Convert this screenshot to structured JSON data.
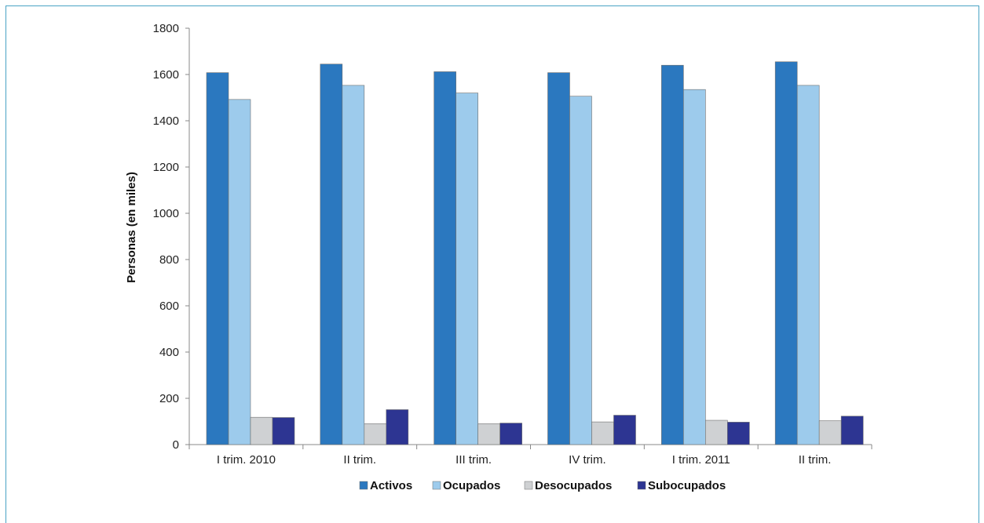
{
  "chart_data": {
    "type": "bar",
    "ylabel": "Personas (en miles)",
    "xlabel": "",
    "ylim": [
      0,
      1800
    ],
    "yticks": [
      0,
      200,
      400,
      600,
      800,
      1000,
      1200,
      1400,
      1600,
      1800
    ],
    "categories": [
      "I trim. 2010",
      "II trim.",
      "III trim.",
      "IV trim.",
      "I trim. 2011",
      "II trim."
    ],
    "series": [
      {
        "name": "Activos",
        "color": "#2b78bf",
        "values": [
          1608,
          1645,
          1612,
          1608,
          1640,
          1655
        ]
      },
      {
        "name": "Ocupados",
        "color": "#9dcbec",
        "values": [
          1492,
          1553,
          1520,
          1506,
          1535,
          1553
        ]
      },
      {
        "name": "Desocupados",
        "color": "#cfd1d3",
        "values": [
          118,
          90,
          90,
          98,
          105,
          103
        ]
      },
      {
        "name": "Subocupados",
        "color": "#2d3592",
        "values": [
          117,
          151,
          93,
          127,
          97,
          123
        ]
      }
    ],
    "legend_position": "bottom",
    "grid": false
  }
}
